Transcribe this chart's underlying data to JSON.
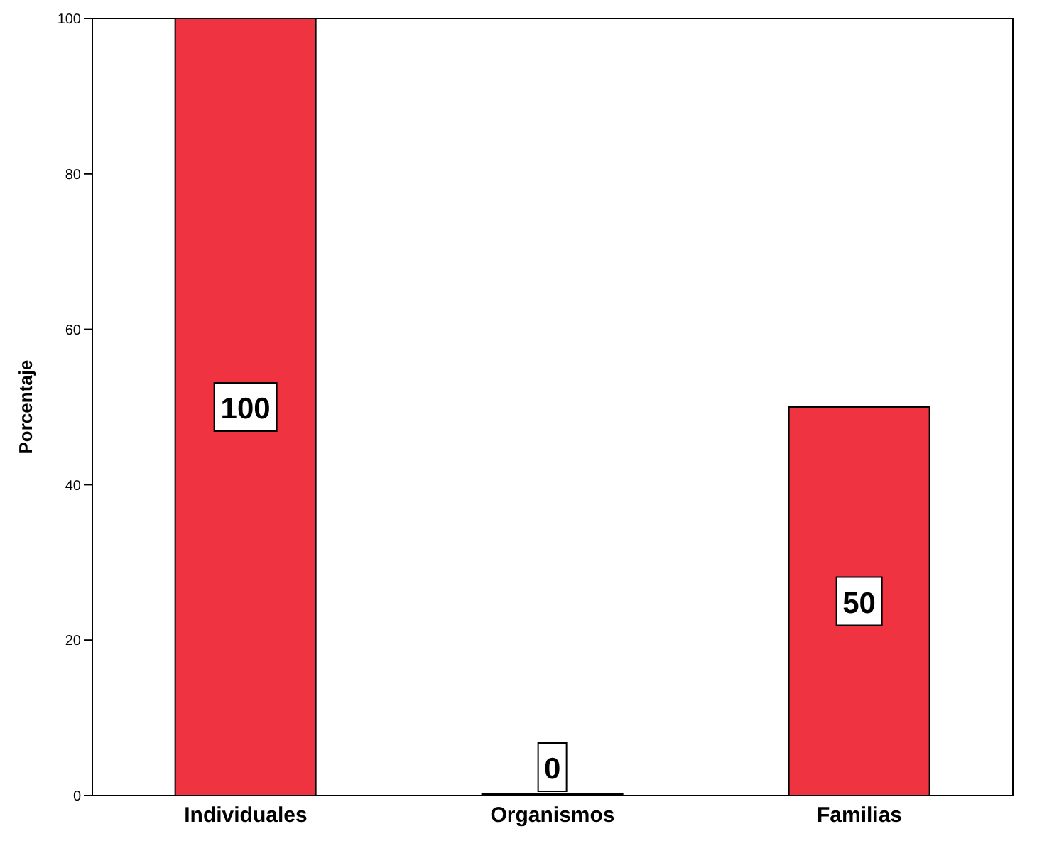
{
  "chart_data": {
    "type": "bar",
    "ylabel": "Porcentaje",
    "categories": [
      "Individuales",
      "Organismos",
      "Familias"
    ],
    "values": [
      100,
      0,
      50
    ],
    "color": "#ef3340",
    "ylim": [
      0,
      100
    ],
    "yticks": [
      0,
      20,
      40,
      60,
      80,
      100
    ],
    "grid": false,
    "data_labels": true
  }
}
